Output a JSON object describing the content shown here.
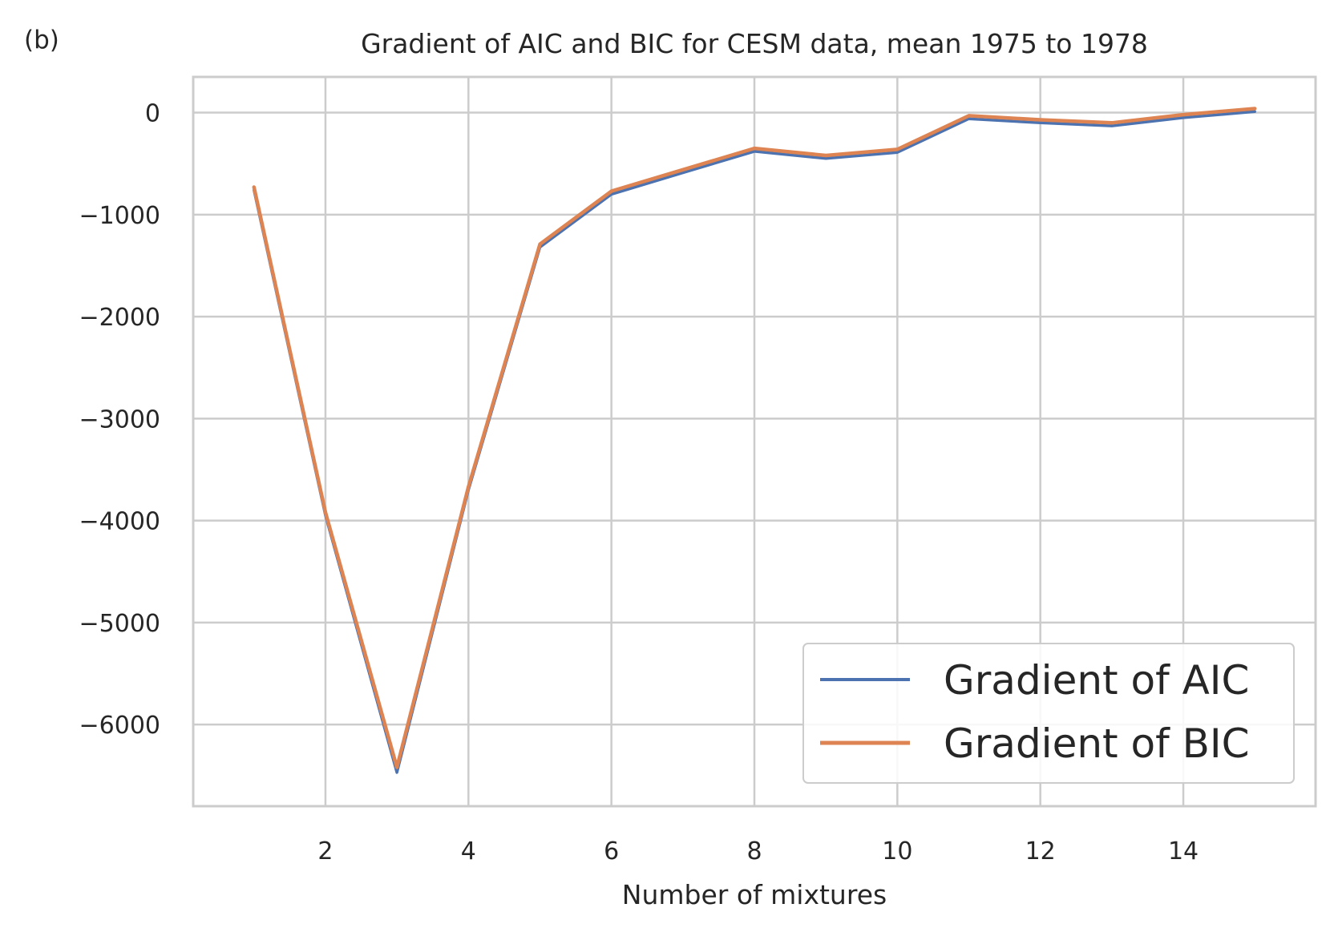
{
  "panel_label": "(b)",
  "chart_data": {
    "type": "line",
    "title": "Gradient of AIC and BIC for CESM data, mean 1975 to 1978",
    "xlabel": "Number of mixtures",
    "ylabel": "",
    "xlim": [
      0.15,
      15.85
    ],
    "ylim": [
      -6800,
      350
    ],
    "xticks": [
      2,
      4,
      6,
      8,
      10,
      12,
      14
    ],
    "yticks": [
      0,
      -1000,
      -2000,
      -3000,
      -4000,
      -5000,
      -6000
    ],
    "ytick_labels": [
      "0",
      "−1000",
      "−2000",
      "−3000",
      "−4000",
      "−5000",
      "−6000"
    ],
    "grid": true,
    "legend_position": "lower-right",
    "x": [
      1,
      2,
      3,
      4,
      5,
      6,
      7,
      8,
      9,
      10,
      11,
      12,
      13,
      14,
      15
    ],
    "series": [
      {
        "name": "Gradient of AIC",
        "color": "#4c72b0",
        "values": [
          -760,
          -3950,
          -6470,
          -3700,
          -1320,
          -800,
          -590,
          -380,
          -450,
          -390,
          -60,
          -100,
          -130,
          -50,
          10
        ]
      },
      {
        "name": "Gradient of BIC",
        "color": "#dd8452",
        "values": [
          -730,
          -3920,
          -6420,
          -3670,
          -1290,
          -770,
          -560,
          -350,
          -420,
          -360,
          -30,
          -70,
          -100,
          -20,
          40
        ]
      }
    ]
  }
}
